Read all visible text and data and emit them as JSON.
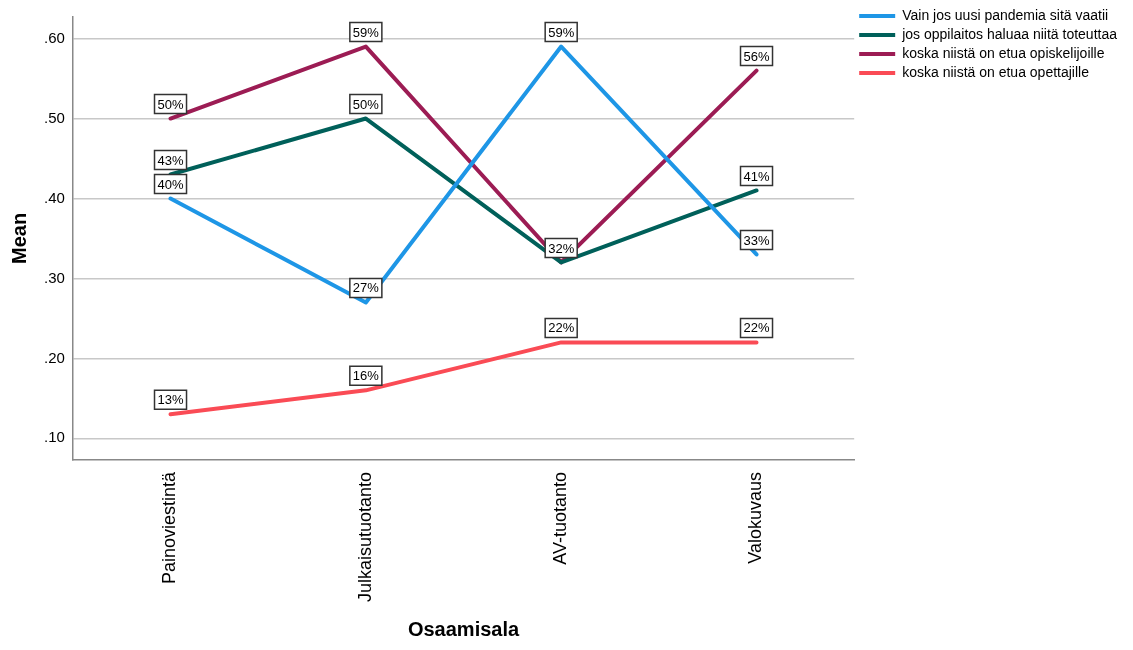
{
  "chart_data": {
    "type": "line",
    "xlabel": "Osaamisala",
    "ylabel": "Mean",
    "categories": [
      "Painoviestintä",
      "Julkaisutuotanto",
      "AV-tuotanto",
      "Valokuvaus"
    ],
    "series": [
      {
        "name": "Vain jos uusi pandemia sitä vaatii",
        "color": "#1e96e6",
        "values": [
          0.4,
          0.27,
          0.59,
          0.33
        ],
        "value_labels": [
          "40%",
          "27%",
          "59%",
          "33%"
        ]
      },
      {
        "name": "jos oppilaitos haluaa niitä toteuttaa",
        "color": "#00605a",
        "values": [
          0.43,
          0.5,
          0.32,
          0.41
        ],
        "value_labels": [
          "43%",
          "50%",
          null,
          "41%"
        ]
      },
      {
        "name": "koska niistä on etua opiskelijoille",
        "color": "#9c1c54",
        "values": [
          0.5,
          0.59,
          0.32,
          0.56
        ],
        "value_labels": [
          "50%",
          "59%",
          "32%",
          "56%"
        ]
      },
      {
        "name": "koska niistä on etua opettajille",
        "color": "#fa4b55",
        "values": [
          0.13,
          0.16,
          0.22,
          0.22
        ],
        "value_labels": [
          "13%",
          "16%",
          "22%",
          "22%"
        ]
      }
    ],
    "ylim": [
      0.073,
      0.627
    ],
    "yticks": [
      {
        "value": 0.1,
        "label": ".10"
      },
      {
        "value": 0.2,
        "label": ".20"
      },
      {
        "value": 0.3,
        "label": ".30"
      },
      {
        "value": 0.4,
        "label": ".40"
      },
      {
        "value": 0.5,
        "label": ".50"
      },
      {
        "value": 0.6,
        "label": ".60"
      }
    ],
    "grid": "y",
    "legend": "top right",
    "line_style": "solid"
  }
}
